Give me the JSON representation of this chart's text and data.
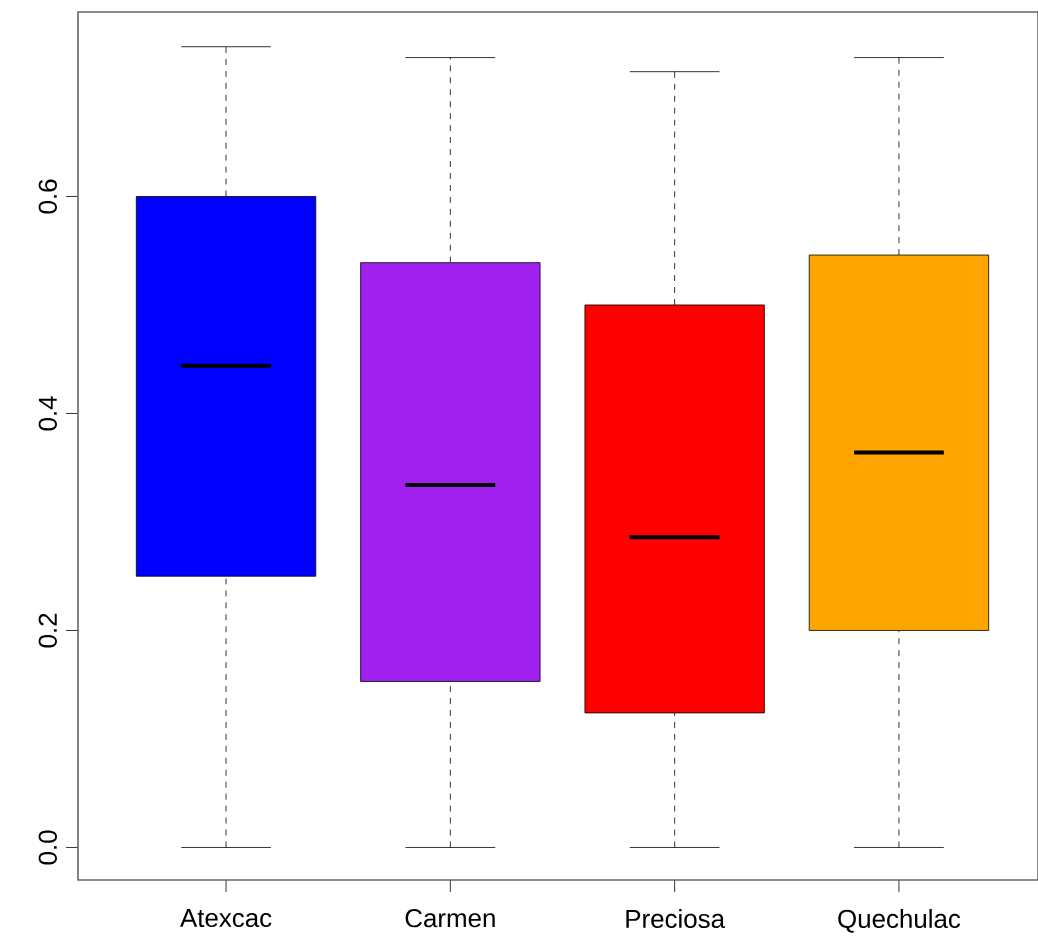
{
  "chart_data": {
    "type": "box",
    "categories": [
      "Atexcac",
      "Carmen",
      "Preciosa",
      "Quechulac"
    ],
    "colors": [
      "#0000ff",
      "#a020f0",
      "#ff0000",
      "#ffa500"
    ],
    "boxes": [
      {
        "low": 0,
        "q1": 0.25,
        "median": 0.444,
        "q3": 0.6,
        "high": 0.738
      },
      {
        "low": 0,
        "q1": 0.153,
        "median": 0.334,
        "q3": 0.539,
        "high": 0.728
      },
      {
        "low": 0,
        "q1": 0.124,
        "median": 0.286,
        "q3": 0.5,
        "high": 0.715
      },
      {
        "low": 0,
        "q1": 0.2,
        "median": 0.364,
        "q3": 0.546,
        "high": 0.728
      }
    ],
    "ylim": [
      -0.03,
      0.77
    ],
    "yticks": [
      {
        "value": 0,
        "label": "0.0"
      },
      0.2,
      0.4,
      0.6
    ],
    "grid": false
  }
}
